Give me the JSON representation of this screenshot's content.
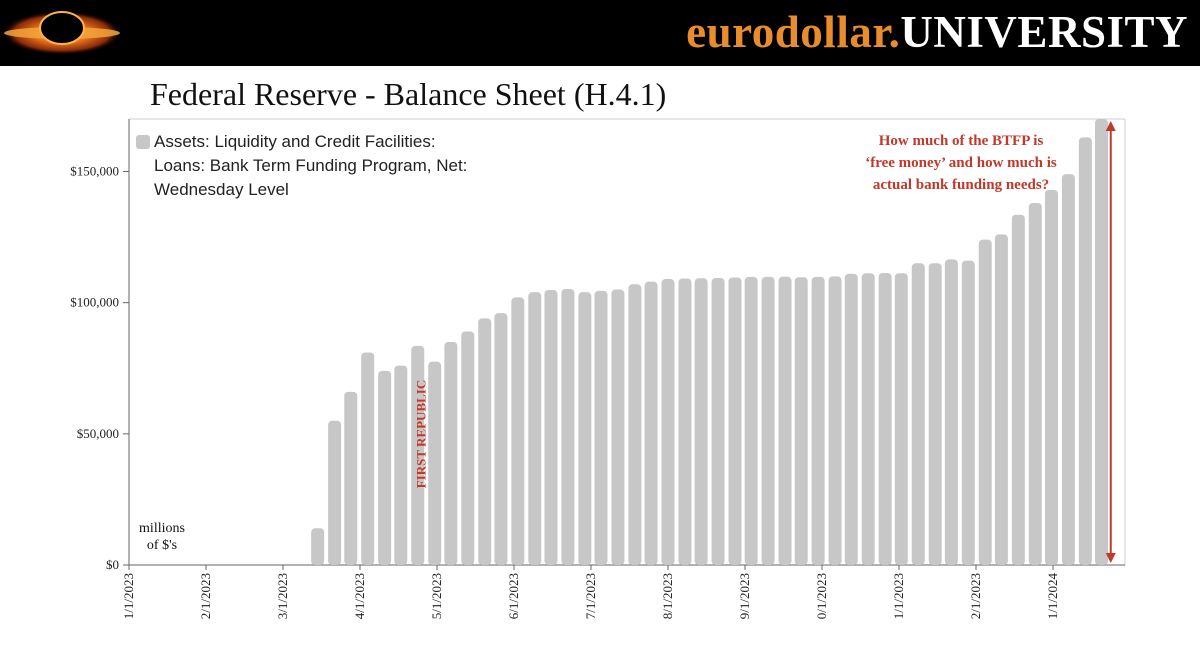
{
  "header": {
    "brand_part1": "eurodollar.",
    "brand_part2": "UNIVERSITY",
    "logo_icon": "black-hole-icon"
  },
  "page_title": "Federal Reserve - Balance Sheet (H.4.1)",
  "colors": {
    "bar": "#c7c7c7",
    "annotation": "#c0392b",
    "brand_accent": "#e98d2c",
    "header_bg": "#000000"
  },
  "legend": {
    "lines": [
      "Assets: Liquidity and Credit Facilities:",
      "Loans: Bank Term Funding Program, Net:",
      "Wednesday Level"
    ]
  },
  "annotation": {
    "lines": [
      "How much of the BTFP is",
      "‘free money’ and how much is",
      "actual bank funding needs?"
    ]
  },
  "marker": {
    "label": "FIRST REPUBLIC"
  },
  "units": {
    "lines": [
      "millions",
      "of $'s"
    ]
  },
  "chart_data": {
    "type": "bar",
    "title": "Federal Reserve - Balance Sheet (H.4.1)",
    "series_name": "Assets: Liquidity and Credit Facilities: Loans: Bank Term Funding Program, Net: Wednesday Level",
    "ylabel": "millions of $'s",
    "ylim": [
      0,
      170000
    ],
    "yticks": [
      0,
      50000,
      100000,
      150000
    ],
    "ytick_labels": [
      "$0",
      "$50,000",
      "$100,000",
      "$150,000"
    ],
    "x_domain": [
      0,
      14.65
    ],
    "xtick_labels": [
      "1/1/2023",
      "2/1/2023",
      "3/1/2023",
      "4/1/2023",
      "5/1/2023",
      "6/1/2023",
      "7/1/2023",
      "8/1/2023",
      "9/1/2023",
      "0/1/2023",
      "1/1/2023",
      "2/1/2023",
      "1/1/2024"
    ],
    "xtick_positions": [
      0,
      1,
      2,
      3,
      4,
      5,
      6,
      7,
      8,
      9,
      10,
      11,
      12
    ],
    "bars": [
      {
        "x": 2.45,
        "value": 14000
      },
      {
        "x": 2.67,
        "value": 55000
      },
      {
        "x": 2.88,
        "value": 66000
      },
      {
        "x": 3.1,
        "value": 81000
      },
      {
        "x": 3.32,
        "value": 74000
      },
      {
        "x": 3.53,
        "value": 76000
      },
      {
        "x": 3.75,
        "value": 83500
      },
      {
        "x": 3.97,
        "value": 77500
      },
      {
        "x": 4.18,
        "value": 85000
      },
      {
        "x": 4.4,
        "value": 89000
      },
      {
        "x": 4.62,
        "value": 94000
      },
      {
        "x": 4.83,
        "value": 96000
      },
      {
        "x": 5.05,
        "value": 102000
      },
      {
        "x": 5.27,
        "value": 104000
      },
      {
        "x": 5.48,
        "value": 104800
      },
      {
        "x": 5.7,
        "value": 105200
      },
      {
        "x": 5.92,
        "value": 104000
      },
      {
        "x": 6.13,
        "value": 104500
      },
      {
        "x": 6.35,
        "value": 105000
      },
      {
        "x": 6.57,
        "value": 107000
      },
      {
        "x": 6.78,
        "value": 108000
      },
      {
        "x": 7.0,
        "value": 109000
      },
      {
        "x": 7.22,
        "value": 109200
      },
      {
        "x": 7.43,
        "value": 109300
      },
      {
        "x": 7.65,
        "value": 109400
      },
      {
        "x": 7.87,
        "value": 109600
      },
      {
        "x": 8.08,
        "value": 109800
      },
      {
        "x": 8.3,
        "value": 109800
      },
      {
        "x": 8.52,
        "value": 109900
      },
      {
        "x": 8.73,
        "value": 109700
      },
      {
        "x": 8.95,
        "value": 109800
      },
      {
        "x": 9.17,
        "value": 110000
      },
      {
        "x": 9.38,
        "value": 111000
      },
      {
        "x": 9.6,
        "value": 111200
      },
      {
        "x": 9.82,
        "value": 111300
      },
      {
        "x": 10.03,
        "value": 111200
      },
      {
        "x": 10.25,
        "value": 115000
      },
      {
        "x": 10.47,
        "value": 115000
      },
      {
        "x": 10.68,
        "value": 116500
      },
      {
        "x": 10.9,
        "value": 116000
      },
      {
        "x": 11.12,
        "value": 124000
      },
      {
        "x": 11.33,
        "value": 126000
      },
      {
        "x": 11.55,
        "value": 133500
      },
      {
        "x": 11.77,
        "value": 138000
      },
      {
        "x": 11.98,
        "value": 143000
      },
      {
        "x": 12.2,
        "value": 149000
      },
      {
        "x": 12.42,
        "value": 163000
      },
      {
        "x": 12.63,
        "value": 170000
      }
    ],
    "event_marker_x": 3.85,
    "arrow_x": 12.75,
    "arrow_range": [
      0,
      170000
    ],
    "grid": false,
    "legend_position": "top-left"
  }
}
